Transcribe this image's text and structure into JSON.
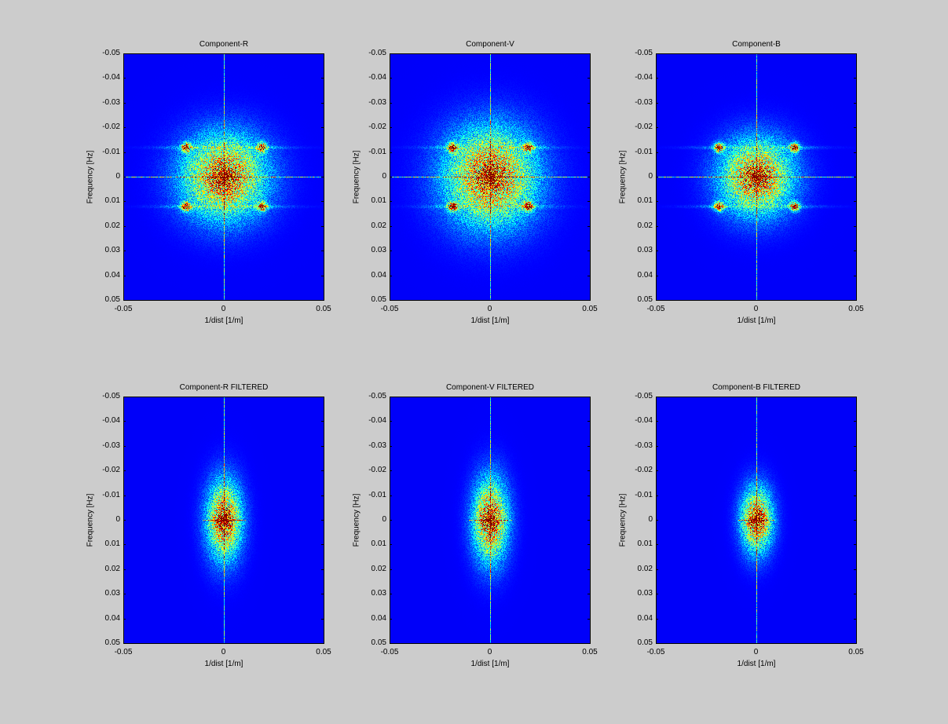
{
  "figure": {
    "background": "#cccccc"
  },
  "chart_data": [
    {
      "type": "heatmap",
      "title": "Component-R",
      "xlabel": "1/dist [1/m]",
      "ylabel": "Frequency [Hz]",
      "xlim": [
        -0.05,
        0.05
      ],
      "ylim": [
        -0.05,
        0.05
      ],
      "y_reversed": true,
      "xticks": [
        "-0.05",
        "0",
        "0.05"
      ],
      "yticks": [
        "-0.05",
        "-0.04",
        "-0.03",
        "-0.02",
        "-0.01",
        "0",
        "0.01",
        "0.02",
        "0.03",
        "0.04",
        "0.05"
      ],
      "colormap": "jet",
      "content": "2D FFT magnitude spectrum with central peak, axis cross lines and 4 side peaks at (+/-0.019, +/-0.012)",
      "peaks": [
        [
          0,
          0
        ],
        [
          -0.019,
          -0.012
        ],
        [
          0.019,
          -0.012
        ],
        [
          -0.019,
          0.012
        ],
        [
          0.019,
          0.012
        ]
      ],
      "spread": [
        0.022,
        0.018
      ],
      "hline": true
    },
    {
      "type": "heatmap",
      "title": "Component-V",
      "xlabel": "1/dist [1/m]",
      "ylabel": "Frequency [Hz]",
      "xlim": [
        -0.05,
        0.05
      ],
      "ylim": [
        -0.05,
        0.05
      ],
      "y_reversed": true,
      "xticks": [
        "-0.05",
        "0",
        "0.05"
      ],
      "yticks": [
        "-0.05",
        "-0.04",
        "-0.03",
        "-0.02",
        "-0.01",
        "0",
        "0.01",
        "0.02",
        "0.03",
        "0.04",
        "0.05"
      ],
      "colormap": "jet",
      "content": "2D FFT magnitude spectrum with central peak, axis cross lines and 4 side peaks",
      "peaks": [
        [
          0,
          0
        ],
        [
          -0.019,
          -0.012
        ],
        [
          0.019,
          -0.012
        ],
        [
          -0.019,
          0.012
        ],
        [
          0.019,
          0.012
        ]
      ],
      "spread": [
        0.024,
        0.021
      ],
      "hline": true
    },
    {
      "type": "heatmap",
      "title": "Component-B",
      "xlabel": "1/dist [1/m]",
      "ylabel": "Frequency [Hz]",
      "xlim": [
        -0.05,
        0.05
      ],
      "ylim": [
        -0.05,
        0.05
      ],
      "y_reversed": true,
      "xticks": [
        "-0.05",
        "0",
        "0.05"
      ],
      "yticks": [
        "-0.05",
        "-0.04",
        "-0.03",
        "-0.02",
        "-0.01",
        "0",
        "0.01",
        "0.02",
        "0.03",
        "0.04",
        "0.05"
      ],
      "colormap": "jet",
      "content": "2D FFT magnitude spectrum with central peak, axis cross lines and 4 side peaks",
      "peaks": [
        [
          0,
          0
        ],
        [
          -0.019,
          -0.012
        ],
        [
          0.019,
          -0.012
        ],
        [
          -0.019,
          0.012
        ],
        [
          0.019,
          0.012
        ]
      ],
      "spread": [
        0.019,
        0.016
      ],
      "hline": true
    },
    {
      "type": "heatmap",
      "title": "Component-R FILTERED",
      "xlabel": "1/dist [1/m]",
      "ylabel": "Frequency [Hz]",
      "xlim": [
        -0.05,
        0.05
      ],
      "ylim": [
        -0.05,
        0.05
      ],
      "y_reversed": true,
      "xticks": [
        "-0.05",
        "0",
        "0.05"
      ],
      "yticks": [
        "-0.05",
        "-0.04",
        "-0.03",
        "-0.02",
        "-0.01",
        "0",
        "0.01",
        "0.02",
        "0.03",
        "0.04",
        "0.05"
      ],
      "colormap": "jet",
      "content": "Low-pass filtered spectrum: elliptical central blob, side peaks removed",
      "peaks": [
        [
          0,
          0
        ]
      ],
      "spread": [
        0.009,
        0.017
      ],
      "hline": false
    },
    {
      "type": "heatmap",
      "title": "Component-V FILTERED",
      "xlabel": "1/dist [1/m]",
      "ylabel": "Frequency [Hz]",
      "xlim": [
        -0.05,
        0.05
      ],
      "ylim": [
        -0.05,
        0.05
      ],
      "y_reversed": true,
      "xticks": [
        "-0.05",
        "0",
        "0.05"
      ],
      "yticks": [
        "-0.05",
        "-0.04",
        "-0.03",
        "-0.02",
        "-0.01",
        "0",
        "0.01",
        "0.02",
        "0.03",
        "0.04",
        "0.05"
      ],
      "colormap": "jet",
      "content": "Low-pass filtered spectrum: elliptical central blob, side peaks removed",
      "peaks": [
        [
          0,
          0
        ]
      ],
      "spread": [
        0.009,
        0.018
      ],
      "hline": false
    },
    {
      "type": "heatmap",
      "title": "Component-B FILTERED",
      "xlabel": "1/dist [1/m]",
      "ylabel": "Frequency [Hz]",
      "xlim": [
        -0.05,
        0.05
      ],
      "ylim": [
        -0.05,
        0.05
      ],
      "y_reversed": true,
      "xticks": [
        "-0.05",
        "0",
        "0.05"
      ],
      "yticks": [
        "-0.05",
        "-0.04",
        "-0.03",
        "-0.02",
        "-0.01",
        "0",
        "0.01",
        "0.02",
        "0.03",
        "0.04",
        "0.05"
      ],
      "colormap": "jet",
      "content": "Low-pass filtered spectrum: elliptical central blob, side peaks removed",
      "peaks": [
        [
          0,
          0
        ]
      ],
      "spread": [
        0.008,
        0.014
      ],
      "hline": false
    }
  ]
}
